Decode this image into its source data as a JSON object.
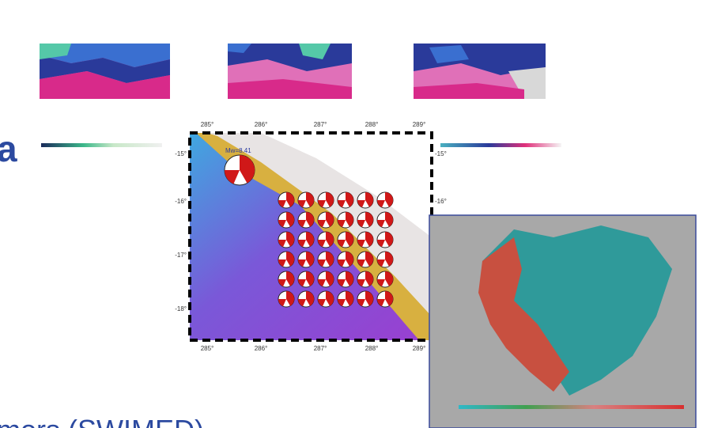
{
  "slide": {
    "heading_fragment": "a",
    "footer_fragment": "mors (SWIMED)"
  },
  "map": {
    "lon_labels": [
      "285°",
      "286°",
      "287°",
      "288°",
      "289°"
    ],
    "lat_labels": [
      "-15°",
      "-16°",
      "-17°",
      "-18°"
    ],
    "event_label": "Mw=8.41"
  }
}
